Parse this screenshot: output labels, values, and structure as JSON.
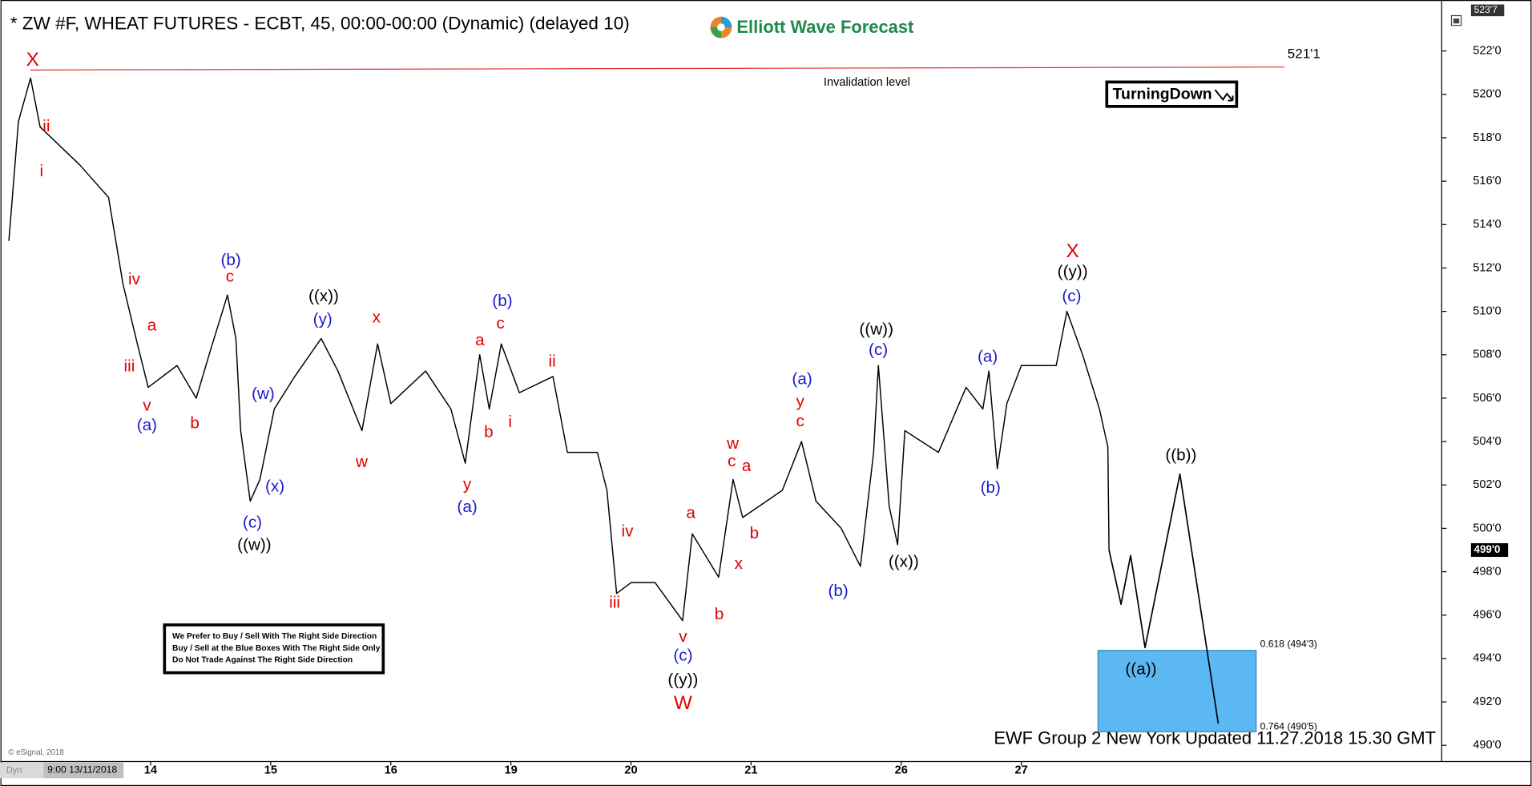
{
  "chart_data": {
    "type": "line",
    "title": "* ZW #F, WHEAT FUTURES - ECBT, 45, 00:00-00:00 (Dynamic) (delayed 10)",
    "logo": "Elliott Wave Forecast",
    "x": [
      -0.18,
      -0.1,
      0,
      0.08,
      0.41,
      0.65,
      0.77,
      0.89,
      0.98,
      1.22,
      1.38,
      1.5,
      1.64,
      1.71,
      1.75,
      1.83,
      1.91,
      2.03,
      2.2,
      2.42,
      2.56,
      2.76,
      2.89,
      3.0,
      3.29,
      3.5,
      3.62,
      3.74,
      3.82,
      3.92,
      4.07,
      4.35,
      4.47,
      4.72,
      4.8,
      4.88,
      5.0,
      5.2,
      5.43,
      5.51,
      5.73,
      5.85,
      5.93,
      6.26,
      6.42,
      6.54,
      6.75,
      6.91,
      7.02,
      7.06,
      7.15,
      7.22,
      7.28,
      7.56,
      7.79,
      7.93,
      7.98,
      8.05,
      8.13,
      8.25,
      8.54,
      8.63,
      8.76,
      8.9,
      8.97,
      8.98
    ],
    "series": [
      {
        "color": "#000000",
        "values": [
          513.25,
          518.75,
          520.75,
          518.5,
          516.75,
          515.25,
          511.25,
          508.5,
          506.5,
          507.5,
          506,
          508.25,
          510.75,
          508.75,
          504.5,
          501.25,
          502.25,
          505.5,
          507,
          508.75,
          507.25,
          504.5,
          508.5,
          505.75,
          507.25,
          505.5,
          503,
          508,
          505.5,
          508.5,
          506.25,
          507,
          503.5,
          503.5,
          501.75,
          497,
          497.5,
          497.5,
          495.75,
          499.75,
          497.75,
          502.25,
          500.5,
          501.75,
          504,
          501.25,
          500,
          498.25,
          503.5,
          507.5,
          501,
          499.25,
          504.5,
          503.5,
          506.5,
          505.5,
          507.25,
          502.75,
          505.75,
          507.5,
          507.5,
          510,
          508,
          505.5,
          503.75,
          499
        ]
      }
    ],
    "projection": {
      "x": [
        8.98,
        9.08,
        9.16,
        9.28,
        9.57,
        9.89
      ],
      "values": [
        499,
        496.5,
        498.75,
        494.5,
        502.5,
        491
      ],
      "color": "#000000"
    },
    "xlim": [
      -0.25,
      11.75
    ],
    "ylim": [
      489.25,
      523.9
    ],
    "xticks": [
      {
        "value": 1,
        "label": "14"
      },
      {
        "value": 2,
        "label": "15"
      },
      {
        "value": 3,
        "label": "16"
      },
      {
        "value": 4,
        "label": "19"
      },
      {
        "value": 5,
        "label": "20"
      },
      {
        "value": 6,
        "label": "21"
      },
      {
        "value": 7.25,
        "label": "26"
      },
      {
        "value": 8.25,
        "label": "27"
      }
    ],
    "yticks": [
      {
        "value": 490,
        "label": "490'0"
      },
      {
        "value": 492,
        "label": "492'0"
      },
      {
        "value": 494,
        "label": "494'0"
      },
      {
        "value": 496,
        "label": "496'0"
      },
      {
        "value": 498,
        "label": "498'0"
      },
      {
        "value": 500,
        "label": "500'0"
      },
      {
        "value": 502,
        "label": "502'0"
      },
      {
        "value": 504,
        "label": "504'0"
      },
      {
        "value": 506,
        "label": "506'0"
      },
      {
        "value": 508,
        "label": "508'0"
      },
      {
        "value": 510,
        "label": "510'0"
      },
      {
        "value": 512,
        "label": "512'0"
      },
      {
        "value": 514,
        "label": "514'0"
      },
      {
        "value": 516,
        "label": "516'0"
      },
      {
        "value": 518,
        "label": "518'0"
      },
      {
        "value": 520,
        "label": "520'0"
      },
      {
        "value": 522,
        "label": "522'0"
      }
    ],
    "grid": false,
    "top_price": {
      "value": 523.875,
      "label": "523'7"
    },
    "last_price": {
      "value": 499,
      "label": "499'0"
    },
    "invalidation": {
      "value": 521.125,
      "label": "521'1",
      "text": "Invalidation level",
      "color": "#e03030"
    },
    "blue_box": {
      "color": "#5cb8f2",
      "top": {
        "value": 494.375,
        "label": "0.618 (494'3)"
      },
      "bottom": {
        "value": 490.625,
        "label": "0.764 (490'5)"
      }
    },
    "badge": "TurningDown",
    "notice": [
      "We Prefer to Buy / Sell With The Right Side Direction",
      "Buy / Sell at the Blue Boxes With The Right Side Only",
      "Do Not Trade Against The Right Side Direction"
    ],
    "footer": "EWF Group 2 New York Updated 11.27.2018 15.30 GMT",
    "copyright": "© eSignal, 2018",
    "start_label": "9:00 13/11/2018",
    "mode_label": "Dyn",
    "annotations": [
      {
        "text": "X",
        "color": "#e00000"
      },
      {
        "text": "ii",
        "color": "#e00000"
      },
      {
        "text": "i",
        "color": "#e00000"
      },
      {
        "text": "iv",
        "color": "#e00000"
      },
      {
        "text": "iii",
        "color": "#e00000"
      },
      {
        "text": "a",
        "color": "#e00000"
      },
      {
        "text": "v",
        "color": "#e00000"
      },
      {
        "text": "(a)",
        "color": "#1a1acc"
      },
      {
        "text": "b",
        "color": "#e00000"
      },
      {
        "text": "(b)",
        "color": "#1a1acc"
      },
      {
        "text": "c",
        "color": "#e00000"
      },
      {
        "text": "(w)",
        "color": "#1a1acc"
      },
      {
        "text": "(x)",
        "color": "#1a1acc"
      },
      {
        "text": "(c)",
        "color": "#1a1acc"
      },
      {
        "text": "((w))",
        "color": "#000000"
      },
      {
        "text": "((x))",
        "color": "#000000"
      },
      {
        "text": "(y)",
        "color": "#1a1acc"
      },
      {
        "text": "x",
        "color": "#e00000"
      },
      {
        "text": "w",
        "color": "#e00000"
      },
      {
        "text": "a",
        "color": "#e00000"
      },
      {
        "text": "(b)",
        "color": "#1a1acc"
      },
      {
        "text": "c",
        "color": "#e00000"
      },
      {
        "text": "b",
        "color": "#e00000"
      },
      {
        "text": "i",
        "color": "#e00000"
      },
      {
        "text": "ii",
        "color": "#e00000"
      },
      {
        "text": "y",
        "color": "#e00000"
      },
      {
        "text": "(a)",
        "color": "#1a1acc"
      },
      {
        "text": "iv",
        "color": "#e00000"
      },
      {
        "text": "iii",
        "color": "#e00000"
      },
      {
        "text": "a",
        "color": "#e00000"
      },
      {
        "text": "v",
        "color": "#e00000"
      },
      {
        "text": "(c)",
        "color": "#1a1acc"
      },
      {
        "text": "((y))",
        "color": "#000000"
      },
      {
        "text": "W",
        "color": "#e00000"
      },
      {
        "text": "b",
        "color": "#e00000"
      },
      {
        "text": "w",
        "color": "#e00000"
      },
      {
        "text": "c",
        "color": "#e00000"
      },
      {
        "text": "a",
        "color": "#e00000"
      },
      {
        "text": "b",
        "color": "#e00000"
      },
      {
        "text": "x",
        "color": "#e00000"
      },
      {
        "text": "(a)",
        "color": "#1a1acc"
      },
      {
        "text": "y",
        "color": "#e00000"
      },
      {
        "text": "c",
        "color": "#e00000"
      },
      {
        "text": "(b)",
        "color": "#1a1acc"
      },
      {
        "text": "((w))",
        "color": "#000000"
      },
      {
        "text": "(c)",
        "color": "#1a1acc"
      },
      {
        "text": "((x))",
        "color": "#000000"
      },
      {
        "text": "(a)",
        "color": "#1a1acc"
      },
      {
        "text": "(b)",
        "color": "#1a1acc"
      },
      {
        "text": "X",
        "color": "#e00000"
      },
      {
        "text": "((y))",
        "color": "#000000"
      },
      {
        "text": "(c)",
        "color": "#1a1acc"
      },
      {
        "text": "((b))",
        "color": "#000000"
      },
      {
        "text": "((a))",
        "color": "#000000"
      }
    ]
  }
}
